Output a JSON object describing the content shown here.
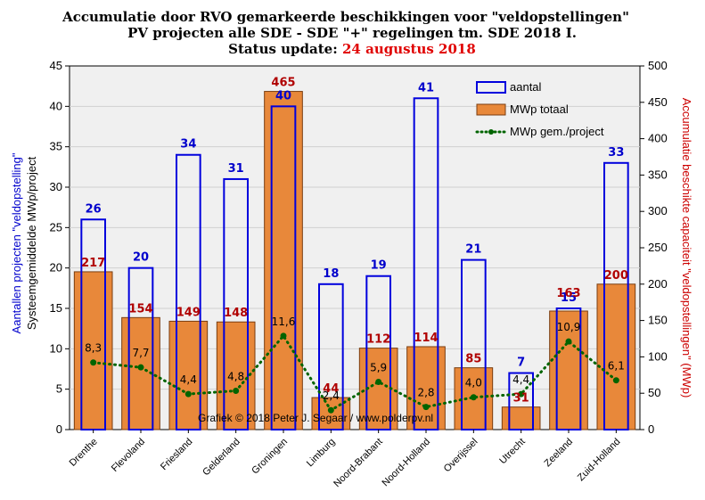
{
  "title_line1": "Accumulatie door RVO gemarkeerde beschikkingen  voor \"veldopstellingen\"",
  "title_line2": "PV projecten alle SDE - SDE \"+\" regelingen  tm. SDE 2018 I.",
  "status_label": "Status update: ",
  "status_date": "24 augustus 2018",
  "credit": "Grafiek  © 2018  Peter J. Segaar / www.polderpv.nl",
  "colors": {
    "bar_fill": "#e8883a",
    "bar_stroke": "#7a3d10",
    "count_stroke": "#0000dd",
    "avg_line": "#006400",
    "plot_bg": "#f0f0f0",
    "grid": "#d0d0d0",
    "count_label": "#0000cc",
    "mwp_label": "#b00000"
  },
  "chart_data": {
    "type": "bar",
    "categories": [
      "Drenthe",
      "Flevoland",
      "Friesland",
      "Gelderland",
      "Groningen",
      "Limburg",
      "Noord-Brabant",
      "Noord-Holland",
      "Overijssel",
      "Utrecht",
      "Zeeland",
      "Zuid-Holland"
    ],
    "series": [
      {
        "name": "aantal",
        "axis": "left",
        "style": "outline-bar",
        "values": [
          26,
          20,
          34,
          31,
          40,
          18,
          19,
          41,
          21,
          7,
          15,
          33
        ],
        "labels": [
          "26",
          "20",
          "34",
          "31",
          "40",
          "18",
          "19",
          "41",
          "21",
          "7",
          "15",
          "33"
        ]
      },
      {
        "name": "MWp totaal",
        "axis": "right",
        "style": "filled-bar",
        "values": [
          217,
          154,
          149,
          148,
          465,
          44,
          112,
          114,
          85,
          31,
          163,
          200
        ],
        "labels": [
          "217",
          "154",
          "149",
          "148",
          "465",
          "44",
          "112",
          "114",
          "85",
          "31",
          "163",
          "200"
        ]
      },
      {
        "name": "MWp gem./project",
        "axis": "left",
        "style": "dotted-line",
        "values": [
          8.3,
          7.7,
          4.4,
          4.8,
          11.6,
          2.4,
          5.9,
          2.8,
          4.0,
          4.4,
          10.9,
          6.1
        ],
        "labels": [
          "8,3",
          "7,7",
          "4,4",
          "4,8",
          "11,6",
          "2,4",
          "5,9",
          "2,8",
          "4,0",
          "4,4",
          "10,9",
          "6,1"
        ]
      }
    ],
    "ylabel_left_line1": "Aantallen projecten \"veldopstelling\"",
    "ylabel_left_line2": "Systeemgemiddelde  MWp/project",
    "ylabel_right": "Accumulatie beschikte capaciteit \"veldopstellingen\"  (MWp)",
    "ylim_left": [
      0,
      45
    ],
    "ylim_right": [
      0,
      500
    ],
    "yticks_left": [
      "0",
      "5",
      "10",
      "15",
      "20",
      "25",
      "30",
      "35",
      "40",
      "45"
    ],
    "yticks_right": [
      "0",
      "50",
      "100",
      "150",
      "200",
      "250",
      "300",
      "350",
      "400",
      "450",
      "500"
    ],
    "grid": true,
    "legend_position": "top-right"
  }
}
